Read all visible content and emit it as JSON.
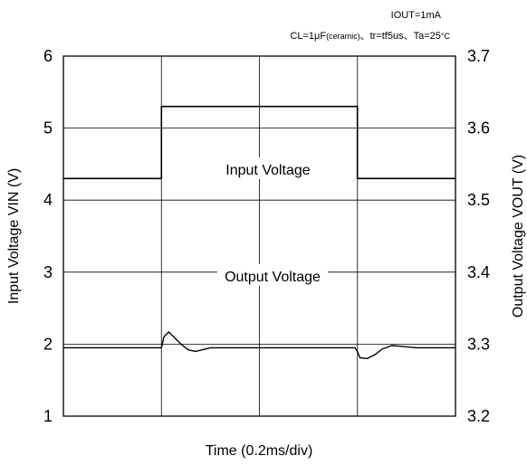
{
  "chart_data": {
    "type": "line",
    "annotations": {
      "line1": "IOUT=1mA",
      "line2_a": "CL=1μF",
      "line2_b": "(ceramic)",
      "line2_c": "、tr=tf5us、Ta=25",
      "line2_d": "°C"
    },
    "xlabel": "Time  (0.2ms/div)",
    "ylabel_left": "Input Voltage  VIN  (V)",
    "ylabel_right": "Output Voltage  VOUT  (V)",
    "x_divisions": 4,
    "ylim_left": [
      1,
      6
    ],
    "ylim_right": [
      3.2,
      3.7
    ],
    "yticks_left": [
      "1",
      "2",
      "3",
      "4",
      "5",
      "6"
    ],
    "yticks_right": [
      "3.2",
      "3.3",
      "3.4",
      "3.5",
      "3.6",
      "3.7"
    ],
    "series": [
      {
        "name": "Input Voltage",
        "axis": "left",
        "x": [
          0,
          0.2,
          0.2,
          0.6,
          0.6,
          0.8
        ],
        "y": [
          4.3,
          4.3,
          5.3,
          5.3,
          4.3,
          4.3
        ]
      },
      {
        "name": "Output Voltage",
        "axis": "right",
        "x": [
          0,
          0.19,
          0.2,
          0.205,
          0.215,
          0.225,
          0.24,
          0.255,
          0.27,
          0.3,
          0.35,
          0.5,
          0.595,
          0.6,
          0.605,
          0.62,
          0.635,
          0.65,
          0.67,
          0.69,
          0.72,
          0.75,
          0.8
        ],
        "y": [
          3.295,
          3.295,
          3.295,
          3.31,
          3.317,
          3.31,
          3.3,
          3.292,
          3.29,
          3.295,
          3.295,
          3.295,
          3.295,
          3.29,
          3.281,
          3.28,
          3.285,
          3.293,
          3.298,
          3.297,
          3.295,
          3.295,
          3.295
        ]
      }
    ],
    "grid": true,
    "colors": {
      "line": "#000000",
      "grid": "#000000"
    }
  }
}
